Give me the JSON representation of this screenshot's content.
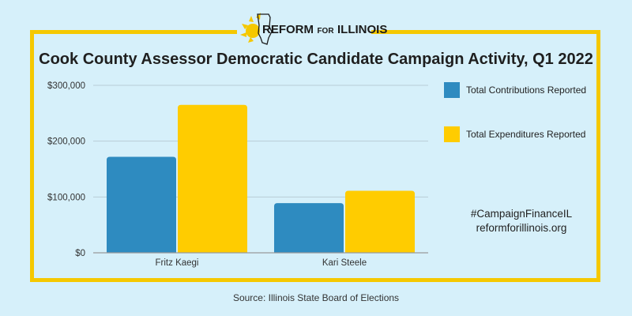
{
  "logo": {
    "part1": "REFORM",
    "part2": "FOR",
    "part3": "ILLINOIS"
  },
  "chart_data": {
    "type": "bar",
    "title": "Cook County Assessor Democratic Candidate Campaign Activity, Q1 2022",
    "categories": [
      "Fritz Kaegi",
      "Kari Steele"
    ],
    "series": [
      {
        "name": "Total Contributions Reported",
        "color": "#2e8bc0",
        "values": [
          172000,
          89000
        ]
      },
      {
        "name": "Total Expenditures Reported",
        "color": "#ffcc00",
        "values": [
          265000,
          111000
        ]
      }
    ],
    "yticks": [
      0,
      100000,
      200000,
      300000
    ],
    "ytick_labels": [
      "$0",
      "$100,000",
      "$200,000",
      "$300,000"
    ],
    "ylim": [
      0,
      300000
    ],
    "grid": true,
    "legend": "right"
  },
  "hashtag": "#CampaignFinanceIL",
  "website": "reformforillinois.org",
  "source": "Source: Illinois State Board of Elections"
}
